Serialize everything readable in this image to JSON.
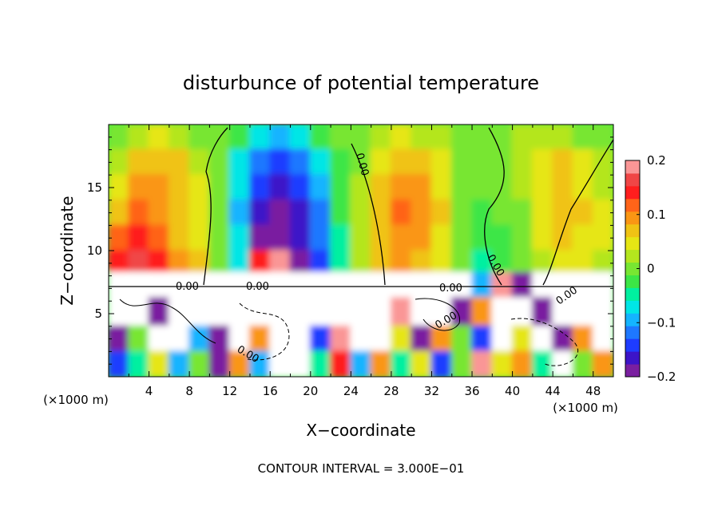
{
  "chart_data": {
    "type": "heatmap",
    "title": "disturbunce of potential temperature",
    "xlabel": "X−coordinate",
    "ylabel": "Z−coordinate",
    "x_unit": "(×1000 m)",
    "z_unit": "(×1000 m)",
    "xlim": [
      0,
      50
    ],
    "ylim": [
      0,
      20
    ],
    "x_ticks": [
      4,
      8,
      12,
      16,
      20,
      24,
      28,
      32,
      36,
      40,
      44,
      48
    ],
    "y_ticks": [
      5,
      10,
      15
    ],
    "contour_labels": [
      "0.00",
      "0.00",
      "0.00",
      "0.00",
      "0.00",
      "0.00",
      "0.00",
      "0.00"
    ],
    "footer": "CONTOUR INTERVAL = 3.000E−01",
    "colorbar": {
      "range": [
        -0.2,
        0.2
      ],
      "tick_labels": [
        "0.2",
        "0.1",
        "0",
        "−0.1",
        "−0.2"
      ],
      "tick_values": [
        0.2,
        0.1,
        0,
        -0.1,
        -0.2
      ],
      "colors": [
        "#7a1fa0",
        "#3c14c8",
        "#1e3cff",
        "#1e78ff",
        "#14b4ff",
        "#00e6e6",
        "#00f0a0",
        "#3ce646",
        "#78e632",
        "#b4e61e",
        "#e6e614",
        "#f0c314",
        "#fa9614",
        "#ff6419",
        "#ff1e1e",
        "#f04646",
        "#fa9696"
      ]
    },
    "field_grid": {
      "nx": 25,
      "nz": 10,
      "z_levels_top_to_bottom": [
        19,
        17,
        15,
        13,
        11,
        9,
        7.5,
        5,
        3,
        1
      ],
      "values": [
        [
          0.0,
          0.02,
          0.04,
          0.03,
          0.01,
          0.0,
          -0.03,
          -0.07,
          -0.09,
          -0.07,
          -0.03,
          -0.01,
          0.01,
          0.03,
          0.04,
          0.03,
          0.02,
          0.01,
          0.0,
          0.01,
          0.02,
          0.03,
          0.02,
          0.01,
          0.0
        ],
        [
          0.02,
          0.06,
          0.08,
          0.07,
          0.03,
          0.0,
          -0.06,
          -0.12,
          -0.14,
          -0.12,
          -0.07,
          -0.02,
          0.01,
          0.05,
          0.08,
          0.07,
          0.04,
          0.01,
          0.0,
          0.0,
          0.02,
          0.05,
          0.06,
          0.04,
          0.02
        ],
        [
          0.05,
          0.09,
          0.1,
          0.08,
          0.04,
          0.0,
          -0.08,
          -0.15,
          -0.17,
          -0.15,
          -0.1,
          -0.03,
          0.02,
          0.07,
          0.1,
          0.09,
          0.05,
          0.01,
          -0.01,
          0.0,
          0.02,
          0.05,
          0.07,
          0.05,
          0.03
        ],
        [
          0.08,
          0.11,
          0.1,
          0.07,
          0.04,
          0.0,
          -0.09,
          -0.17,
          -0.19,
          -0.16,
          -0.11,
          -0.03,
          0.03,
          0.08,
          0.11,
          0.1,
          0.06,
          0.01,
          -0.02,
          -0.01,
          0.01,
          0.05,
          0.07,
          0.06,
          0.04
        ],
        [
          0.12,
          0.14,
          0.12,
          0.08,
          0.05,
          0.0,
          -0.08,
          -0.18,
          -0.2,
          -0.17,
          -0.12,
          -0.04,
          0.02,
          0.07,
          0.1,
          0.09,
          0.05,
          0.0,
          -0.03,
          -0.02,
          0.01,
          0.04,
          0.06,
          0.05,
          0.04
        ],
        [
          0.15,
          0.16,
          0.13,
          0.09,
          0.06,
          0.01,
          -0.06,
          0.15,
          0.2,
          -0.18,
          -0.13,
          -0.04,
          0.02,
          0.06,
          0.09,
          0.08,
          0.04,
          0.0,
          -0.04,
          -0.03,
          0.0,
          0.03,
          0.05,
          0.04,
          0.03
        ],
        [
          0.3,
          -0.3,
          0.3,
          0.3,
          -0.3,
          0.3,
          0.3,
          0.3,
          -0.3,
          0.3,
          0.3,
          0.3,
          0.3,
          0.3,
          0.3,
          0.3,
          0.3,
          0.3,
          -0.1,
          0.2,
          -0.2,
          0.3,
          0.3,
          -0.3,
          0.3
        ],
        [
          0.3,
          -0.3,
          -0.2,
          0.3,
          0.3,
          -0.3,
          0.3,
          -0.3,
          0.3,
          0.3,
          0.3,
          -0.3,
          0.3,
          0.3,
          0.2,
          0.3,
          -0.3,
          -0.2,
          0.1,
          -0.3,
          0.3,
          -0.2,
          0.3,
          0.3,
          -0.3
        ],
        [
          -0.2,
          0.0,
          0.3,
          0.3,
          -0.1,
          -0.2,
          -0.3,
          0.1,
          0.3,
          0.3,
          -0.15,
          0.2,
          -0.25,
          0.3,
          0.05,
          -0.2,
          0.1,
          0.0,
          -0.15,
          0.3,
          0.05,
          0.3,
          -0.2,
          0.1,
          0.3
        ],
        [
          -0.15,
          -0.05,
          0.05,
          -0.1,
          0.0,
          -0.2,
          0.1,
          -0.1,
          0.3,
          0.3,
          -0.05,
          0.15,
          -0.1,
          0.1,
          -0.05,
          0.05,
          -0.15,
          0.0,
          0.2,
          0.05,
          0.1,
          -0.05,
          0.3,
          0.0,
          0.1
        ]
      ]
    }
  }
}
